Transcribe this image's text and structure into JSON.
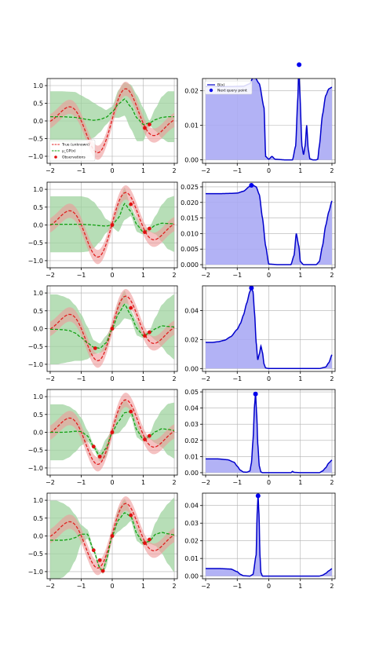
{
  "colors": {
    "true_line": "#e02020",
    "true_band": "#ee9a9a",
    "posterior_line": "#12a012",
    "posterior_band": "#9fd39f",
    "observation": "#e01010",
    "acq_line": "#0000cc",
    "acq_fill": "#aaaaf4",
    "next_point": "#0000ee",
    "grid": "#b0b0b0"
  },
  "legend_left": {
    "items": [
      {
        "label": "True (unknown)",
        "style": "dashed",
        "color": "#e02020"
      },
      {
        "label": "μ_GP(x)",
        "style": "dashed",
        "color": "#12a012"
      },
      {
        "label": "Observations",
        "style": "point",
        "color": "#e01010"
      }
    ],
    "placement": "lower-left"
  },
  "legend_right": {
    "items": [
      {
        "label": "B(x)",
        "style": "line",
        "color": "#0000cc"
      },
      {
        "label": "Next query point",
        "style": "point",
        "color": "#0000ee"
      }
    ],
    "placement": "upper-left"
  },
  "chart_data": [
    {
      "type": "line",
      "panel": "gp",
      "row": 1,
      "xlim": [
        -2.1,
        2.1
      ],
      "ylim": [
        -1.2,
        1.2
      ],
      "xticks": [
        -2,
        -1,
        0,
        1,
        2
      ],
      "yticks": [
        -1.0,
        -0.5,
        0.0,
        0.5,
        1.0
      ],
      "xtick_labels": [
        "−2",
        "−1",
        "0",
        "1",
        "2"
      ],
      "ytick_labels": [
        "−1.0",
        "−0.5",
        "0.0",
        "0.5",
        "1.0"
      ],
      "grid": true,
      "true_band": 0.2,
      "mean_x": [
        -2,
        -1.8,
        -1.6,
        -1.4,
        -1.2,
        -1.0,
        -0.8,
        -0.6,
        -0.4,
        -0.2,
        0.0,
        0.2,
        0.4,
        0.6,
        0.8,
        1.0,
        1.2,
        1.4,
        1.6,
        1.8,
        2.0
      ],
      "mean_y": [
        0.12,
        0.12,
        0.12,
        0.11,
        0.1,
        0.07,
        0.04,
        0.02,
        0.04,
        0.1,
        0.25,
        0.48,
        0.62,
        0.4,
        0.08,
        -0.1,
        -0.06,
        0.04,
        0.1,
        0.12,
        0.12
      ],
      "std": [
        0.55,
        0.55,
        0.55,
        0.55,
        0.55,
        0.5,
        0.45,
        0.38,
        0.28,
        0.16,
        0.12,
        0.3,
        0.36,
        0.48,
        0.5,
        0.36,
        0.05,
        0.25,
        0.45,
        0.55,
        0.55
      ],
      "observations": {
        "x": [
          1.05,
          1.2
        ],
        "y": [
          -0.2,
          -0.1
        ]
      },
      "legend": true
    },
    {
      "type": "area",
      "panel": "acquisition",
      "row": 1,
      "xlim": [
        -2.1,
        2.1
      ],
      "ylim": [
        -0.001,
        0.0235
      ],
      "xticks": [
        -2,
        -1,
        0,
        1,
        2
      ],
      "yticks": [
        0.0,
        0.01,
        0.02
      ],
      "xtick_labels": [
        "−2",
        "−1",
        "0",
        "1",
        "2"
      ],
      "ytick_labels": [
        "0.00",
        "0.01",
        "0.02"
      ],
      "grid": true,
      "x": [
        -2,
        -1.6,
        -1.2,
        -0.8,
        -0.6,
        -0.5,
        -0.45,
        -0.3,
        -0.15,
        -0.1,
        0.0,
        0.1,
        0.2,
        0.5,
        0.75,
        0.85,
        0.92,
        0.95,
        0.98,
        1.05,
        1.1,
        1.15,
        1.2,
        1.25,
        1.3,
        1.4,
        1.5,
        1.55,
        1.6,
        1.7,
        1.8,
        1.9,
        2.0
      ],
      "y": [
        0.0212,
        0.0212,
        0.0212,
        0.0213,
        0.022,
        0.0238,
        0.024,
        0.022,
        0.015,
        0.001,
        0.0002,
        0.001,
        0.0002,
        0.0,
        0.0,
        0.004,
        0.018,
        0.0272,
        0.02,
        0.004,
        0.0015,
        0.004,
        0.01,
        0.003,
        0.0003,
        0.0,
        0.0,
        0.0002,
        0.004,
        0.013,
        0.0185,
        0.0205,
        0.021
      ],
      "next_point": {
        "x": 0.96,
        "y": 0.0275
      },
      "legend": true
    },
    {
      "type": "line",
      "panel": "gp",
      "row": 2,
      "xlim": [
        -2.1,
        2.1
      ],
      "ylim": [
        -1.2,
        1.2
      ],
      "xticks": [
        -2,
        -1,
        0,
        1,
        2
      ],
      "yticks": [
        -1.0,
        -0.5,
        0.0,
        0.5,
        1.0
      ],
      "xtick_labels": [
        "−2",
        "−1",
        "0",
        "1",
        "2"
      ],
      "ytick_labels": [
        "−1.0",
        "−0.5",
        "0.0",
        "0.5",
        "1.0"
      ],
      "grid": true,
      "true_band": 0.2,
      "mean_x": [
        -2,
        -1.8,
        -1.6,
        -1.4,
        -1.2,
        -1.0,
        -0.8,
        -0.6,
        -0.4,
        -0.2,
        0.0,
        0.2,
        0.4,
        0.6,
        0.8,
        1.0,
        1.2,
        1.4,
        1.6,
        1.8,
        2.0
      ],
      "mean_y": [
        0.02,
        0.02,
        0.02,
        0.02,
        0.02,
        0.02,
        0.01,
        0.0,
        -0.02,
        -0.03,
        0.0,
        0.2,
        0.6,
        0.38,
        0.0,
        -0.2,
        -0.12,
        0.0,
        0.05,
        0.04,
        0.03
      ],
      "std": [
        0.6,
        0.6,
        0.6,
        0.6,
        0.6,
        0.6,
        0.58,
        0.5,
        0.35,
        0.15,
        0.05,
        0.3,
        0.35,
        0.1,
        0.15,
        0.05,
        0.05,
        0.2,
        0.4,
        0.55,
        0.6
      ],
      "observations": {
        "x": [
          0.0,
          0.6,
          1.05,
          1.2
        ],
        "y": [
          0.0,
          0.58,
          -0.2,
          -0.1
        ]
      },
      "legend": false
    },
    {
      "type": "area",
      "panel": "acquisition",
      "row": 2,
      "xlim": [
        -2.1,
        2.1
      ],
      "ylim": [
        -0.001,
        0.0265
      ],
      "xticks": [
        -2,
        -1,
        0,
        1,
        2
      ],
      "yticks": [
        0.0,
        0.005,
        0.01,
        0.015,
        0.02,
        0.025
      ],
      "xtick_labels": [
        "−2",
        "−1",
        "0",
        "1",
        "2"
      ],
      "ytick_labels": [
        "0.000",
        "0.005",
        "0.010",
        "0.015",
        "0.020",
        "0.025"
      ],
      "grid": true,
      "x": [
        -2,
        -1.6,
        -1.2,
        -1.0,
        -0.8,
        -0.6,
        -0.5,
        -0.4,
        -0.3,
        -0.2,
        -0.1,
        0.0,
        0.3,
        0.7,
        0.8,
        0.87,
        0.95,
        1.0,
        1.1,
        1.3,
        1.5,
        1.6,
        1.7,
        1.8,
        1.9,
        2.0
      ],
      "y": [
        0.0228,
        0.0228,
        0.0229,
        0.023,
        0.0236,
        0.0252,
        0.0255,
        0.025,
        0.0225,
        0.015,
        0.006,
        0.0002,
        0.0,
        0.0,
        0.003,
        0.01,
        0.006,
        0.001,
        0.0,
        0.0,
        0.0,
        0.001,
        0.006,
        0.0125,
        0.017,
        0.0205
      ],
      "next_point": {
        "x": -0.55,
        "y": 0.0255
      },
      "legend": false
    },
    {
      "type": "line",
      "panel": "gp",
      "row": 3,
      "xlim": [
        -2.1,
        2.1
      ],
      "ylim": [
        -1.2,
        1.2
      ],
      "xticks": [
        -2,
        -1,
        0,
        1,
        2
      ],
      "yticks": [
        -1.0,
        -0.5,
        0.0,
        0.5,
        1.0
      ],
      "xtick_labels": [
        "−2",
        "−1",
        "0",
        "1",
        "2"
      ],
      "ytick_labels": [
        "−1.0",
        "−0.5",
        "0.0",
        "0.5",
        "1.0"
      ],
      "grid": true,
      "true_band": 0.2,
      "mean_x": [
        -2,
        -1.8,
        -1.6,
        -1.4,
        -1.2,
        -1.0,
        -0.8,
        -0.6,
        -0.4,
        -0.2,
        0.0,
        0.2,
        0.4,
        0.6,
        0.8,
        1.0,
        1.2,
        1.4,
        1.6,
        1.8,
        2.0
      ],
      "mean_y": [
        -0.02,
        -0.02,
        -0.03,
        -0.05,
        -0.12,
        -0.25,
        -0.4,
        -0.52,
        -0.55,
        -0.4,
        0.0,
        0.42,
        0.68,
        0.38,
        0.0,
        -0.2,
        -0.12,
        0.0,
        0.08,
        0.06,
        0.05
      ],
      "std": [
        0.75,
        0.75,
        0.72,
        0.68,
        0.6,
        0.5,
        0.35,
        0.15,
        0.1,
        0.15,
        0.05,
        0.25,
        0.3,
        0.1,
        0.15,
        0.05,
        0.05,
        0.25,
        0.45,
        0.6,
        0.7
      ],
      "observations": {
        "x": [
          -0.55,
          0.0,
          0.6,
          1.05,
          1.2
        ],
        "y": [
          -0.55,
          0.0,
          0.58,
          -0.2,
          -0.1
        ]
      },
      "legend": false
    },
    {
      "type": "area",
      "panel": "acquisition",
      "row": 3,
      "xlim": [
        -2.1,
        2.1
      ],
      "ylim": [
        -0.002,
        0.057
      ],
      "xticks": [
        -2,
        -1,
        0,
        1,
        2
      ],
      "yticks": [
        0.0,
        0.02,
        0.04
      ],
      "xtick_labels": [
        "−2",
        "−1",
        "0",
        "1",
        "2"
      ],
      "ytick_labels": [
        "0.00",
        "0.02",
        "0.04"
      ],
      "grid": true,
      "x": [
        -2,
        -1.8,
        -1.6,
        -1.4,
        -1.2,
        -1.0,
        -0.9,
        -0.8,
        -0.7,
        -0.6,
        -0.55,
        -0.5,
        -0.45,
        -0.4,
        -0.35,
        -0.3,
        -0.25,
        -0.2,
        -0.15,
        -0.1,
        0.0,
        0.5,
        1.0,
        1.6,
        1.8,
        1.9,
        2.0
      ],
      "y": [
        0.018,
        0.018,
        0.0185,
        0.0195,
        0.022,
        0.027,
        0.031,
        0.037,
        0.045,
        0.053,
        0.0555,
        0.053,
        0.038,
        0.018,
        0.006,
        0.01,
        0.0155,
        0.011,
        0.003,
        0.0004,
        0.0,
        0.0,
        0.0,
        0.0,
        0.001,
        0.004,
        0.0095
      ],
      "next_point": {
        "x": -0.55,
        "y": 0.0555
      },
      "legend": false
    },
    {
      "type": "line",
      "panel": "gp",
      "row": 4,
      "xlim": [
        -2.1,
        2.1
      ],
      "ylim": [
        -1.2,
        1.2
      ],
      "xticks": [
        -2,
        -1,
        0,
        1,
        2
      ],
      "yticks": [
        -1.0,
        -0.5,
        0.0,
        0.5,
        1.0
      ],
      "xtick_labels": [
        "−2",
        "−1",
        "0",
        "1",
        "2"
      ],
      "ytick_labels": [
        "−1.0",
        "−0.5",
        "0.0",
        "0.5",
        "1.0"
      ],
      "grid": true,
      "true_band": 0.2,
      "mean_x": [
        -2,
        -1.8,
        -1.6,
        -1.4,
        -1.2,
        -1.0,
        -0.8,
        -0.6,
        -0.4,
        -0.2,
        0.0,
        0.2,
        0.4,
        0.6,
        0.8,
        1.0,
        1.2,
        1.4,
        1.6,
        1.8,
        2.0
      ],
      "mean_y": [
        0.0,
        0.0,
        0.0,
        0.01,
        0.03,
        0.02,
        -0.1,
        -0.4,
        -0.68,
        -0.45,
        0.0,
        0.3,
        0.55,
        0.58,
        0.05,
        -0.2,
        -0.12,
        0.02,
        0.1,
        0.08,
        0.05
      ],
      "std": [
        0.6,
        0.6,
        0.6,
        0.55,
        0.45,
        0.3,
        0.12,
        0.05,
        0.1,
        0.2,
        0.05,
        0.25,
        0.3,
        0.1,
        0.15,
        0.05,
        0.05,
        0.25,
        0.4,
        0.55,
        0.6
      ],
      "observations": {
        "x": [
          -0.6,
          -0.4,
          0.0,
          0.6,
          1.05,
          1.2
        ],
        "y": [
          -0.4,
          -0.68,
          0.0,
          0.58,
          -0.2,
          -0.1
        ]
      },
      "legend": false
    },
    {
      "type": "area",
      "panel": "acquisition",
      "row": 4,
      "xlim": [
        -2.1,
        2.1
      ],
      "ylim": [
        -0.0015,
        0.0515
      ],
      "xticks": [
        -2,
        -1,
        0,
        1,
        2
      ],
      "yticks": [
        0.0,
        0.01,
        0.02,
        0.03,
        0.04,
        0.05
      ],
      "xtick_labels": [
        "−2",
        "−1",
        "0",
        "1",
        "2"
      ],
      "ytick_labels": [
        "0.00",
        "0.01",
        "0.02",
        "0.03",
        "0.04",
        "0.05"
      ],
      "grid": true,
      "x": [
        -2,
        -1.6,
        -1.3,
        -1.1,
        -1.0,
        -0.9,
        -0.8,
        -0.7,
        -0.6,
        -0.55,
        -0.5,
        -0.45,
        -0.42,
        -0.38,
        -0.35,
        -0.3,
        -0.25,
        -0.2,
        0.0,
        0.5,
        0.7,
        0.75,
        0.8,
        1.0,
        1.6,
        1.7,
        1.8,
        1.9,
        2.0
      ],
      "y": [
        0.0085,
        0.0085,
        0.008,
        0.0065,
        0.004,
        0.0015,
        0.0004,
        0.0003,
        0.001,
        0.006,
        0.02,
        0.042,
        0.049,
        0.035,
        0.018,
        0.004,
        0.0005,
        0.0,
        0.0,
        0.0,
        0.0,
        0.0008,
        0.0002,
        0.0,
        0.0,
        0.001,
        0.003,
        0.006,
        0.0078
      ],
      "next_point": {
        "x": -0.42,
        "y": 0.0487
      },
      "legend": false
    },
    {
      "type": "line",
      "panel": "gp",
      "row": 5,
      "xlim": [
        -2.1,
        2.1
      ],
      "ylim": [
        -1.2,
        1.2
      ],
      "xticks": [
        -2,
        -1,
        0,
        1,
        2
      ],
      "yticks": [
        -1.0,
        -0.5,
        0.0,
        0.5,
        1.0
      ],
      "xtick_labels": [
        "−2",
        "−1",
        "0",
        "1",
        "2"
      ],
      "ytick_labels": [
        "−1.0",
        "−0.5",
        "0.0",
        "0.5",
        "1.0"
      ],
      "grid": true,
      "true_band": 0.2,
      "mean_x": [
        -2,
        -1.8,
        -1.6,
        -1.4,
        -1.2,
        -1.0,
        -0.8,
        -0.6,
        -0.4,
        -0.3,
        -0.2,
        0.0,
        0.2,
        0.4,
        0.6,
        0.8,
        1.0,
        1.2,
        1.4,
        1.6,
        1.8,
        2.0
      ],
      "mean_y": [
        -0.12,
        -0.12,
        -0.12,
        -0.1,
        -0.05,
        0.05,
        0.05,
        -0.4,
        -0.9,
        -1.0,
        -0.7,
        0.0,
        0.45,
        0.65,
        0.55,
        0.05,
        -0.2,
        -0.15,
        0.05,
        0.1,
        0.06,
        0.03
      ],
      "std": [
        0.85,
        0.85,
        0.8,
        0.7,
        0.5,
        0.2,
        0.1,
        0.05,
        0.05,
        0.05,
        0.15,
        0.05,
        0.25,
        0.3,
        0.1,
        0.15,
        0.05,
        0.05,
        0.25,
        0.45,
        0.65,
        0.8
      ],
      "observations": {
        "x": [
          -0.6,
          -0.4,
          -0.3,
          0.0,
          0.6,
          1.05,
          1.2
        ],
        "y": [
          -0.4,
          -0.68,
          -0.98,
          0.0,
          0.58,
          -0.2,
          -0.1
        ]
      },
      "legend": false
    },
    {
      "type": "area",
      "panel": "acquisition",
      "row": 5,
      "xlim": [
        -2.1,
        2.1
      ],
      "ylim": [
        -0.0015,
        0.047
      ],
      "xticks": [
        -2,
        -1,
        0,
        1,
        2
      ],
      "yticks": [
        0.0,
        0.01,
        0.02,
        0.03,
        0.04
      ],
      "xtick_labels": [
        "−2",
        "−1",
        "0",
        "1",
        "2"
      ],
      "ytick_labels": [
        "0.00",
        "0.01",
        "0.02",
        "0.03",
        "0.04"
      ],
      "grid": true,
      "x": [
        -2,
        -1.6,
        -1.2,
        -1.0,
        -0.9,
        -0.8,
        -0.6,
        -0.5,
        -0.4,
        -0.37,
        -0.34,
        -0.31,
        -0.28,
        -0.25,
        -0.2,
        0.0,
        0.5,
        1.0,
        1.6,
        1.7,
        1.8,
        1.9,
        2.0
      ],
      "y": [
        0.0043,
        0.0043,
        0.004,
        0.0025,
        0.001,
        0.0002,
        0.0,
        0.001,
        0.012,
        0.035,
        0.0455,
        0.035,
        0.012,
        0.002,
        0.0,
        0.0,
        0.0,
        0.0,
        0.0,
        0.0005,
        0.0015,
        0.003,
        0.0042
      ],
      "next_point": {
        "x": -0.34,
        "y": 0.0455
      },
      "legend": false
    }
  ]
}
